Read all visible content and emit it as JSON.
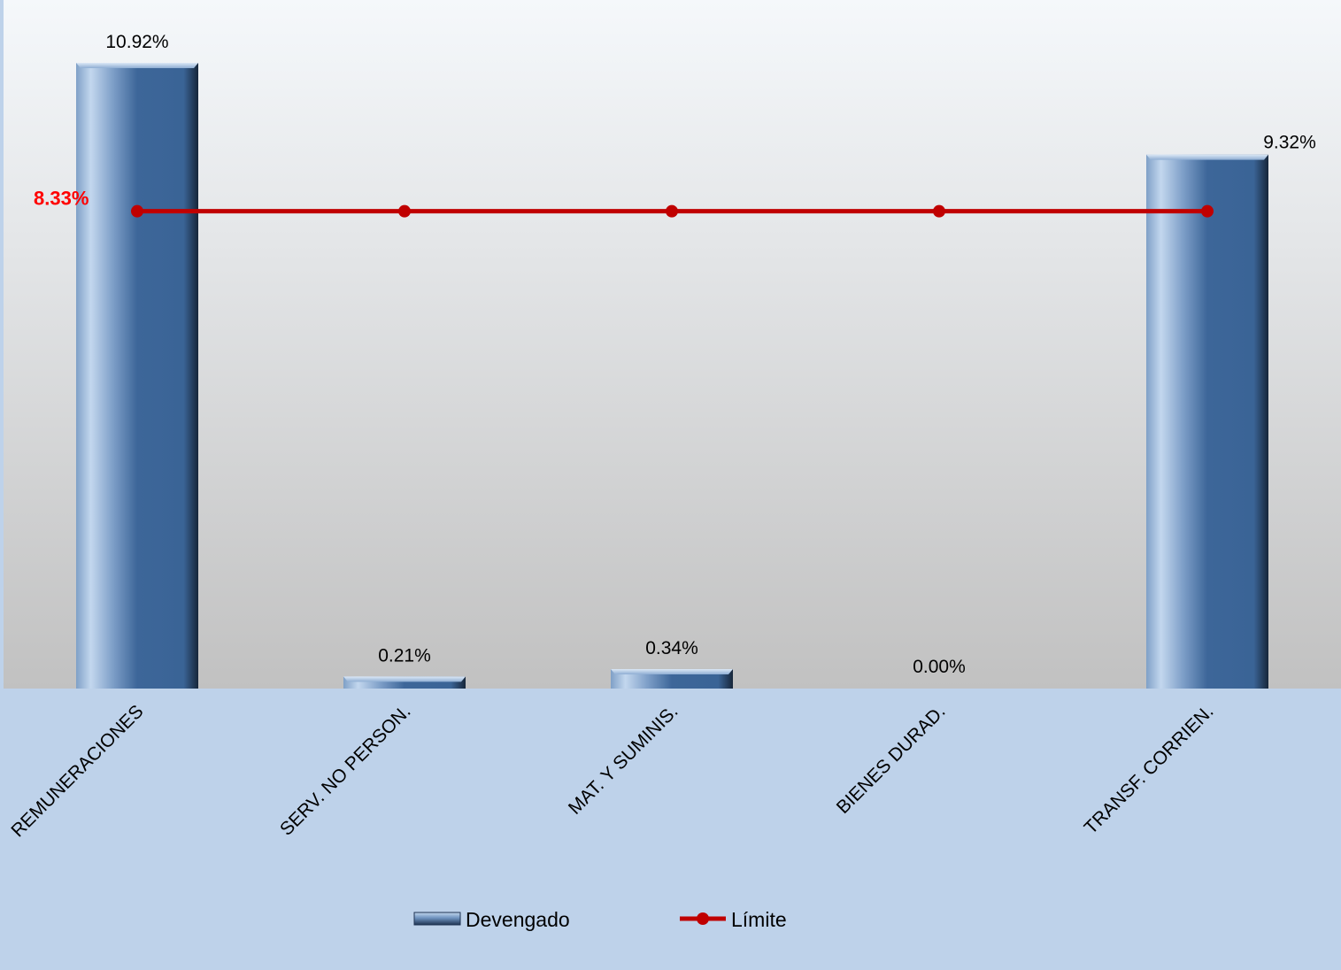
{
  "chart_data": {
    "type": "bar",
    "categories": [
      "REMUNERACIONES",
      "SERV. NO PERSON.",
      "MAT. Y SUMINIS.",
      "BIENES DURAD.",
      "TRANSF. CORRIEN."
    ],
    "series": [
      {
        "name": "Devengado",
        "type": "bar",
        "values": [
          10.92,
          0.21,
          0.34,
          0.0,
          9.32
        ],
        "labels": [
          "10.92%",
          "0.21%",
          "0.34%",
          "0.00%",
          "9.32%"
        ],
        "color": "#3B6699"
      },
      {
        "name": "Límite",
        "type": "line",
        "values": [
          8.33,
          8.33,
          8.33,
          8.33,
          8.33
        ],
        "label": "8.33%",
        "color": "#C00000"
      }
    ],
    "ylim": [
      0,
      11.5
    ],
    "grid": false,
    "legend": "bottom-center",
    "label_color_limit": "#FF0000",
    "plot_background": [
      "#F4F7FA",
      "#C2C2C2"
    ],
    "axis_background": "#BED2EA"
  }
}
